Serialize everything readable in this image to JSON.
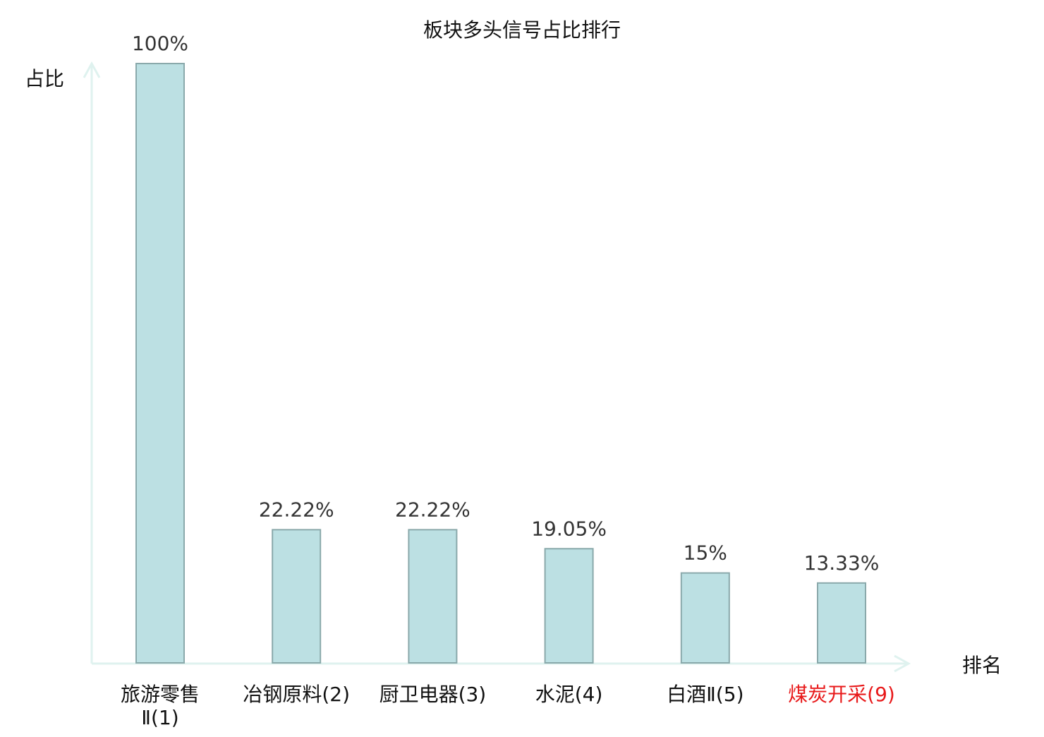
{
  "chart_data": {
    "type": "bar",
    "title": "板块多头信号占比排行",
    "xlabel": "排名",
    "ylabel": "占比",
    "ylim": [
      0,
      100
    ],
    "grid": false,
    "categories": [
      {
        "lines": [
          "旅游零售",
          "Ⅱ(1)"
        ],
        "highlight": false
      },
      {
        "lines": [
          "冶钢原料(2)"
        ],
        "highlight": false
      },
      {
        "lines": [
          "厨卫电器(3)"
        ],
        "highlight": false
      },
      {
        "lines": [
          "水泥(4)"
        ],
        "highlight": false
      },
      {
        "lines": [
          "白酒Ⅱ(5)"
        ],
        "highlight": false
      },
      {
        "lines": [
          "煤炭开采(9)"
        ],
        "highlight": true
      }
    ],
    "values": [
      100,
      22.22,
      22.22,
      19.05,
      15,
      13.33
    ],
    "labels": [
      "100%",
      "22.22%",
      "22.22%",
      "19.05%",
      "15%",
      "13.33%"
    ],
    "colors": {
      "bar_fill": "#bce0e3",
      "bar_stroke": "#8aa9ab",
      "axis": "#dff2ef",
      "text": "#333333",
      "highlight": "#e8191a"
    }
  }
}
